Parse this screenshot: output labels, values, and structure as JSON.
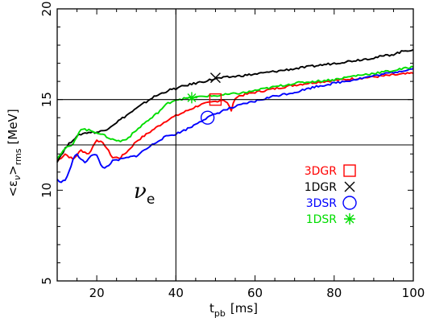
{
  "chart_data": {
    "type": "line",
    "ylabel_main": "<ε",
    "ylabel_nu": "ν",
    "ylabel_close": ">",
    "ylabel_sub": "rms",
    "ylabel_unit": "[MeV]",
    "xlabel_main": "t",
    "xlabel_sub": "pb",
    "xlabel_unit": "[ms]",
    "xlim": [
      10,
      100
    ],
    "ylim": [
      5,
      20
    ],
    "x_ticks": [
      20,
      40,
      60,
      80,
      100
    ],
    "y_ticks": [
      5,
      10,
      15,
      20
    ],
    "annotation": {
      "symbol": "ν",
      "sub": "e",
      "x": 30.5,
      "y": 10.2
    },
    "ref_lines": {
      "vertical_x": 40,
      "horizontal_y": [
        12.5,
        15
      ]
    },
    "series": [
      {
        "name": "3DGR",
        "color": "#ff0000",
        "marker": "square",
        "marker_at": [
          50,
          15
        ],
        "points": [
          [
            10,
            11.6
          ],
          [
            12,
            12.0
          ],
          [
            14,
            11.7
          ],
          [
            16,
            12.2
          ],
          [
            18,
            12.0
          ],
          [
            20,
            12.8
          ],
          [
            22,
            12.5
          ],
          [
            24,
            11.8
          ],
          [
            26,
            11.8
          ],
          [
            28,
            12.2
          ],
          [
            30,
            12.7
          ],
          [
            32,
            13.0
          ],
          [
            34,
            13.3
          ],
          [
            36,
            13.6
          ],
          [
            38,
            13.9
          ],
          [
            40,
            14.1
          ],
          [
            42,
            14.3
          ],
          [
            44,
            14.5
          ],
          [
            46,
            14.7
          ],
          [
            48,
            14.8
          ],
          [
            50,
            14.9
          ],
          [
            52,
            15.0
          ],
          [
            53,
            14.8
          ],
          [
            54,
            14.4
          ],
          [
            55,
            15.1
          ],
          [
            56,
            15.2
          ],
          [
            58,
            15.3
          ],
          [
            60,
            15.4
          ],
          [
            65,
            15.6
          ],
          [
            70,
            15.8
          ],
          [
            75,
            15.95
          ],
          [
            80,
            16.05
          ],
          [
            85,
            16.15
          ],
          [
            90,
            16.25
          ],
          [
            95,
            16.35
          ],
          [
            100,
            16.45
          ]
        ]
      },
      {
        "name": "1DGR",
        "color": "#000000",
        "marker": "cross",
        "marker_at": [
          50,
          16.2
        ],
        "points": [
          [
            10,
            11.6
          ],
          [
            12,
            12.3
          ],
          [
            14,
            12.8
          ],
          [
            16,
            13.1
          ],
          [
            18,
            13.2
          ],
          [
            20,
            13.2
          ],
          [
            22,
            13.3
          ],
          [
            24,
            13.6
          ],
          [
            26,
            13.9
          ],
          [
            28,
            14.2
          ],
          [
            30,
            14.5
          ],
          [
            32,
            14.8
          ],
          [
            34,
            15.1
          ],
          [
            36,
            15.3
          ],
          [
            38,
            15.5
          ],
          [
            40,
            15.6
          ],
          [
            42,
            15.75
          ],
          [
            44,
            15.85
          ],
          [
            46,
            15.95
          ],
          [
            48,
            16.05
          ],
          [
            50,
            16.15
          ],
          [
            52,
            16.2
          ],
          [
            54,
            16.25
          ],
          [
            56,
            16.3
          ],
          [
            58,
            16.35
          ],
          [
            60,
            16.4
          ],
          [
            65,
            16.55
          ],
          [
            70,
            16.7
          ],
          [
            75,
            16.85
          ],
          [
            80,
            17.0
          ],
          [
            85,
            17.15
          ],
          [
            90,
            17.3
          ],
          [
            95,
            17.5
          ],
          [
            98,
            17.7
          ],
          [
            100,
            17.75
          ]
        ]
      },
      {
        "name": "3DSR",
        "color": "#0000ff",
        "marker": "circle",
        "marker_at": [
          48,
          14
        ],
        "points": [
          [
            10,
            10.6
          ],
          [
            11,
            10.4
          ],
          [
            12,
            10.6
          ],
          [
            13,
            11.0
          ],
          [
            14,
            11.7
          ],
          [
            15,
            12.0
          ],
          [
            16,
            11.7
          ],
          [
            17,
            11.5
          ],
          [
            18,
            11.8
          ],
          [
            19,
            12.0
          ],
          [
            20,
            11.9
          ],
          [
            21,
            11.4
          ],
          [
            22,
            11.2
          ],
          [
            23,
            11.4
          ],
          [
            24,
            11.6
          ],
          [
            26,
            11.7
          ],
          [
            28,
            11.8
          ],
          [
            30,
            11.9
          ],
          [
            32,
            12.2
          ],
          [
            34,
            12.5
          ],
          [
            36,
            12.8
          ],
          [
            38,
            13.0
          ],
          [
            40,
            13.1
          ],
          [
            42,
            13.3
          ],
          [
            44,
            13.5
          ],
          [
            46,
            13.8
          ],
          [
            48,
            14.0
          ],
          [
            50,
            14.2
          ],
          [
            52,
            14.4
          ],
          [
            55,
            14.6
          ],
          [
            58,
            14.8
          ],
          [
            60,
            14.9
          ],
          [
            65,
            15.2
          ],
          [
            70,
            15.4
          ],
          [
            75,
            15.7
          ],
          [
            80,
            15.9
          ],
          [
            85,
            16.1
          ],
          [
            90,
            16.3
          ],
          [
            95,
            16.5
          ],
          [
            100,
            16.7
          ]
        ]
      },
      {
        "name": "1DSR",
        "color": "#00dd00",
        "marker": "asterisk",
        "marker_at": [
          44,
          15.1
        ],
        "points": [
          [
            10,
            11.8
          ],
          [
            12,
            12.3
          ],
          [
            14,
            12.5
          ],
          [
            15,
            13.0
          ],
          [
            16,
            13.4
          ],
          [
            18,
            13.3
          ],
          [
            20,
            13.2
          ],
          [
            22,
            13.0
          ],
          [
            24,
            12.8
          ],
          [
            26,
            12.7
          ],
          [
            28,
            12.9
          ],
          [
            30,
            13.3
          ],
          [
            32,
            13.7
          ],
          [
            34,
            14.0
          ],
          [
            36,
            14.4
          ],
          [
            38,
            14.8
          ],
          [
            40,
            15.0
          ],
          [
            42,
            15.05
          ],
          [
            44,
            15.1
          ],
          [
            46,
            15.15
          ],
          [
            48,
            15.2
          ],
          [
            50,
            15.2
          ],
          [
            52,
            15.25
          ],
          [
            54,
            15.3
          ],
          [
            56,
            15.35
          ],
          [
            58,
            15.4
          ],
          [
            60,
            15.5
          ],
          [
            65,
            15.7
          ],
          [
            70,
            15.9
          ],
          [
            75,
            16.0
          ],
          [
            80,
            16.1
          ],
          [
            85,
            16.3
          ],
          [
            90,
            16.45
          ],
          [
            95,
            16.6
          ],
          [
            100,
            16.8
          ]
        ]
      }
    ]
  }
}
